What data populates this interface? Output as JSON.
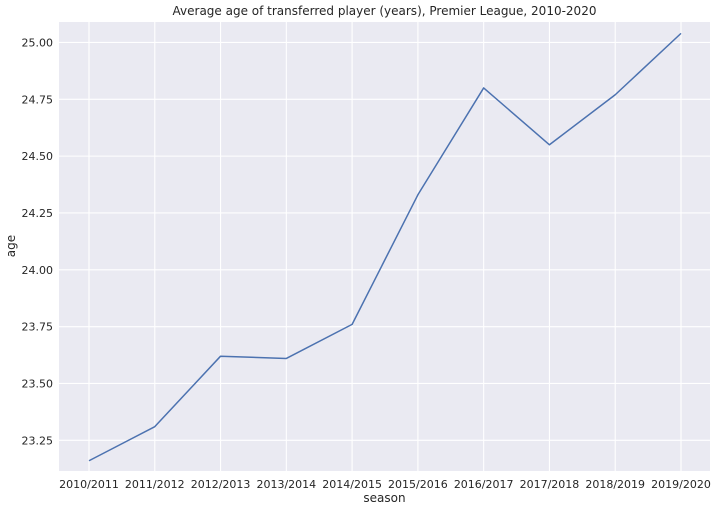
{
  "chart_data": {
    "type": "line",
    "title": "Average age of transferred player (years), Premier League, 2010-2020",
    "xlabel": "season",
    "ylabel": "age",
    "categories": [
      "2010/2011",
      "2011/2012",
      "2012/2013",
      "2013/2014",
      "2014/2015",
      "2015/2016",
      "2016/2017",
      "2017/2018",
      "2018/2019",
      "2019/2020"
    ],
    "series": [
      {
        "values": [
          23.16,
          23.31,
          23.62,
          23.61,
          23.76,
          24.33,
          24.8,
          24.55,
          24.77,
          25.04
        ]
      }
    ],
    "yticks": [
      "23.25",
      "23.50",
      "23.75",
      "24.00",
      "24.25",
      "24.50",
      "24.75",
      "25.00"
    ],
    "ylim": [
      23.115,
      25.09
    ],
    "grid": true,
    "colors": {
      "background": "#eaeaf2",
      "grid": "#ffffff",
      "line": "#4c72b0"
    }
  }
}
